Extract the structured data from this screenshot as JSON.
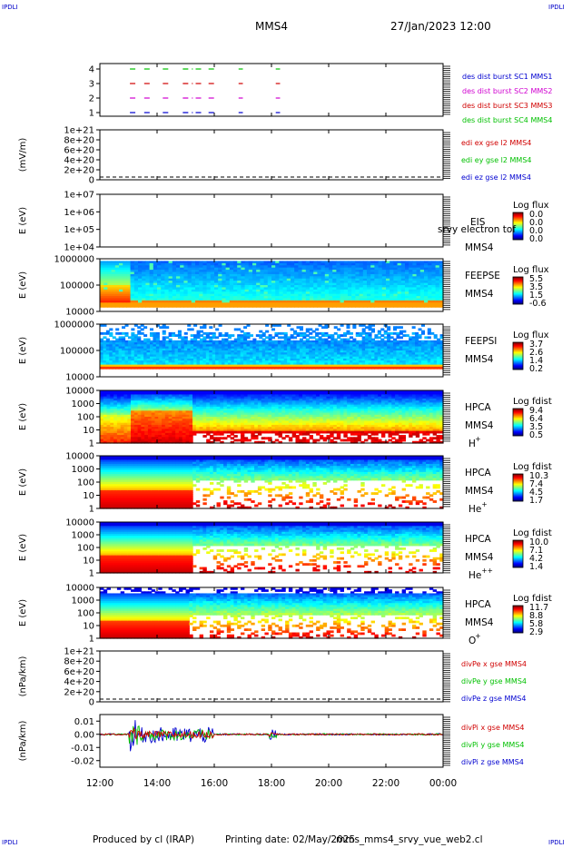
{
  "corners": {
    "tl": "IPDLI",
    "tr": "IPDLI",
    "bl": "IPDLI",
    "br": "IPDLI"
  },
  "header": {
    "spacecraft": "MMS4",
    "datetime": "27/Jan/2023 12:00"
  },
  "footer": {
    "producer": "Produced by cl (IRAP)",
    "printing": "Printing date: 02/May/2025",
    "script": "mms_mms4_srvy_vue_web2.cl"
  },
  "time_axis": {
    "ticks": [
      "12:00",
      "14:00",
      "16:00",
      "18:00",
      "20:00",
      "22:00",
      "00:00"
    ],
    "range_hours": [
      12,
      24
    ]
  },
  "colors": {
    "red": "#d00000",
    "magenta": "#d000d0",
    "green": "#00c000",
    "blue": "#0000d0",
    "dashed_zero": "#000000"
  },
  "chart_data": [
    {
      "type": "line",
      "id": "burst",
      "yticks": [
        "4",
        "3",
        "2",
        "1"
      ],
      "legend": [
        {
          "text": "des dist burst SC1 MMS1",
          "color": "#0000d0"
        },
        {
          "text": "des dist burst SC2 MMS2",
          "color": "#d000d0"
        },
        {
          "text": "des dist burst SC3 MMS3",
          "color": "#d00000"
        },
        {
          "text": "des dist burst SC4 MMS4",
          "color": "#00c000"
        }
      ],
      "segments_hours": [
        [
          13.05,
          13.3
        ],
        [
          13.55,
          13.8
        ],
        [
          14.2,
          14.45
        ],
        [
          14.9,
          15.25
        ],
        [
          15.35,
          15.6
        ],
        [
          15.8,
          16.1
        ],
        [
          16.85,
          17.0
        ],
        [
          18.15,
          18.3
        ]
      ]
    },
    {
      "type": "line",
      "id": "edi",
      "ylabel": "(mV/m)",
      "yticks": [
        "1e+21",
        "8e+20",
        "6e+20",
        "4e+20",
        "2e+20",
        "0"
      ],
      "legend": [
        {
          "text": "edi ex gse l2 MMS4",
          "color": "#d00000"
        },
        {
          "text": "edi ey gse l2 MMS4",
          "color": "#00c000"
        },
        {
          "text": "edi ez gse l2 MMS4",
          "color": "#0000d0"
        }
      ]
    },
    {
      "type": "heatmap",
      "id": "eis",
      "ylabel": "E (eV)",
      "yticks": [
        "1e+07",
        "1e+06",
        "1e+05",
        "1e+04"
      ],
      "labels": [
        "EIS",
        "srvy electron tof",
        "MMS4"
      ],
      "cbar_title": "Log flux",
      "cbar_values": [
        "0.0",
        "0.0",
        "0.0",
        "0.0"
      ]
    },
    {
      "type": "heatmap",
      "id": "feepse",
      "ylabel": "E (eV)",
      "yticks": [
        "1000000",
        "100000",
        "10000"
      ],
      "labels": [
        "FEEPSE",
        "MMS4"
      ],
      "cbar_title": "Log flux",
      "cbar_values": [
        "5.5",
        "3.5",
        "1.5",
        "-0.6"
      ]
    },
    {
      "type": "heatmap",
      "id": "feepsi",
      "ylabel": "E (eV)",
      "yticks": [
        "1000000",
        "100000",
        "10000"
      ],
      "labels": [
        "FEEPSI",
        "MMS4"
      ],
      "cbar_title": "Log flux",
      "cbar_values": [
        "3.7",
        "2.6",
        "1.4",
        "0.2"
      ]
    },
    {
      "type": "heatmap",
      "id": "hpca_h",
      "ylabel": "E (eV)",
      "yticks": [
        "10000",
        "1000",
        "100",
        "10",
        "1"
      ],
      "labels": [
        "HPCA",
        "MMS4"
      ],
      "species_base": "H",
      "species_sup": "+",
      "cbar_title": "Log fdist",
      "cbar_values": [
        "9.4",
        "6.4",
        "3.5",
        "0.5"
      ]
    },
    {
      "type": "heatmap",
      "id": "hpca_he",
      "ylabel": "E (eV)",
      "yticks": [
        "10000",
        "1000",
        "100",
        "10",
        "1"
      ],
      "labels": [
        "HPCA",
        "MMS4"
      ],
      "species_base": "He",
      "species_sup": "+",
      "cbar_title": "Log fdist",
      "cbar_values": [
        "10.3",
        "7.4",
        "4.5",
        "1.7"
      ]
    },
    {
      "type": "heatmap",
      "id": "hpca_hepp",
      "ylabel": "E (eV)",
      "yticks": [
        "10000",
        "1000",
        "100",
        "10",
        "1"
      ],
      "labels": [
        "HPCA",
        "MMS4"
      ],
      "species_base": "He",
      "species_sup": "++",
      "cbar_title": "Log fdist",
      "cbar_values": [
        "10.0",
        "7.1",
        "4.2",
        "1.4"
      ]
    },
    {
      "type": "heatmap",
      "id": "hpca_o",
      "ylabel": "E (eV)",
      "yticks": [
        "10000",
        "1000",
        "100",
        "10",
        "1"
      ],
      "labels": [
        "HPCA",
        "MMS4"
      ],
      "species_base": "O",
      "species_sup": "+",
      "cbar_title": "Log fdist",
      "cbar_values": [
        "11.7",
        "8.8",
        "5.8",
        "2.9"
      ]
    },
    {
      "type": "line",
      "id": "divpe",
      "ylabel": "(nPa/km)",
      "yticks": [
        "1e+21",
        "8e+20",
        "6e+20",
        "4e+20",
        "2e+20",
        "0"
      ],
      "legend": [
        {
          "text": "divPe x gse MMS4",
          "color": "#d00000"
        },
        {
          "text": "divPe y gse MMS4",
          "color": "#00c000"
        },
        {
          "text": "divPe z gse MMS4",
          "color": "#0000d0"
        }
      ]
    },
    {
      "type": "line",
      "id": "divpi",
      "ylabel": "(nPa/km)",
      "yticks": [
        "0.01",
        "0.00",
        "-0.01",
        "-0.02"
      ],
      "ylim": [
        -0.025,
        0.015
      ],
      "legend": [
        {
          "text": "divPi x gse MMS4",
          "color": "#d00000"
        },
        {
          "text": "divPi y gse MMS4",
          "color": "#00c000"
        },
        {
          "text": "divPi z gse MMS4",
          "color": "#0000d0"
        }
      ]
    }
  ]
}
